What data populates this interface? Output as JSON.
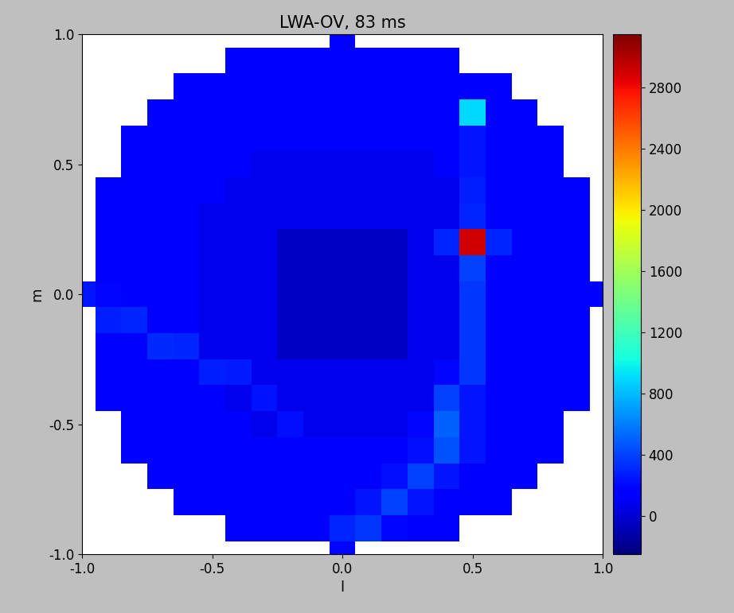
{
  "chart_data": {
    "type": "heatmap",
    "title": "LWA-OV, 83 ms",
    "x_label": "l",
    "y_label": "m",
    "xlim": [
      -1.0,
      1.0
    ],
    "ylim": [
      -1.0,
      1.0
    ],
    "xticks": [
      -1.0,
      -0.5,
      0.0,
      0.5,
      1.0
    ],
    "yticks": [
      -1.0,
      -0.5,
      0.0,
      0.5,
      1.0
    ],
    "color": "jet",
    "color_range": [
      -250,
      3150
    ],
    "color_ticks": [
      0,
      400,
      800,
      1200,
      1600,
      2000,
      2400,
      2800
    ],
    "l": [
      -1.0,
      -0.9,
      -0.8,
      -0.7,
      -0.6,
      -0.5,
      -0.4,
      -0.3,
      -0.2,
      -0.1,
      0.0,
      0.1,
      0.2,
      0.3,
      0.4,
      0.5,
      0.6,
      0.7,
      0.8,
      0.9,
      1.0
    ],
    "m": [
      -1.0,
      -0.9,
      -0.8,
      -0.7,
      -0.6,
      -0.5,
      -0.4,
      -0.3,
      -0.2,
      -0.1,
      0.0,
      0.1,
      0.2,
      0.3,
      0.4,
      0.5,
      0.6,
      0.7,
      0.8,
      0.9,
      1.0
    ],
    "cells": [
      [
        null,
        null,
        null,
        null,
        null,
        null,
        null,
        null,
        null,
        null,
        200,
        null,
        null,
        null,
        null,
        null,
        null,
        null,
        null,
        null,
        null
      ],
      [
        null,
        null,
        null,
        null,
        null,
        null,
        160,
        160,
        160,
        160,
        300,
        350,
        200,
        160,
        160,
        null,
        null,
        null,
        null,
        null,
        null
      ],
      [
        null,
        null,
        null,
        null,
        160,
        160,
        160,
        160,
        160,
        160,
        160,
        250,
        400,
        250,
        160,
        160,
        160,
        null,
        null,
        null,
        null
      ],
      [
        null,
        null,
        null,
        160,
        160,
        160,
        160,
        160,
        160,
        160,
        160,
        160,
        220,
        400,
        250,
        160,
        160,
        160,
        null,
        null,
        null
      ],
      [
        null,
        null,
        160,
        160,
        160,
        160,
        160,
        160,
        160,
        160,
        160,
        160,
        160,
        220,
        450,
        250,
        160,
        160,
        160,
        null,
        null
      ],
      [
        null,
        null,
        160,
        160,
        160,
        160,
        160,
        80,
        220,
        80,
        80,
        80,
        80,
        200,
        500,
        250,
        160,
        160,
        160,
        null,
        null
      ],
      [
        null,
        160,
        160,
        160,
        160,
        160,
        80,
        240,
        80,
        80,
        80,
        80,
        80,
        80,
        400,
        250,
        160,
        160,
        160,
        160,
        null
      ],
      [
        null,
        160,
        160,
        160,
        160,
        280,
        260,
        80,
        80,
        80,
        80,
        80,
        80,
        80,
        200,
        350,
        160,
        160,
        160,
        160,
        null
      ],
      [
        null,
        160,
        160,
        320,
        300,
        80,
        80,
        80,
        -50,
        -50,
        -50,
        -50,
        -50,
        80,
        80,
        350,
        160,
        160,
        160,
        160,
        null
      ],
      [
        null,
        280,
        300,
        160,
        160,
        80,
        80,
        80,
        -50,
        -50,
        -50,
        -50,
        -50,
        80,
        80,
        350,
        160,
        160,
        160,
        160,
        null
      ],
      [
        250,
        200,
        160,
        160,
        160,
        80,
        80,
        80,
        -50,
        -50,
        -50,
        -50,
        -50,
        80,
        80,
        350,
        160,
        160,
        160,
        160,
        160
      ],
      [
        null,
        160,
        160,
        160,
        160,
        80,
        80,
        80,
        -50,
        -50,
        -50,
        -50,
        -50,
        80,
        80,
        400,
        160,
        160,
        160,
        160,
        null
      ],
      [
        null,
        160,
        160,
        160,
        160,
        80,
        80,
        80,
        -50,
        -50,
        -50,
        -50,
        -50,
        80,
        300,
        2900,
        300,
        160,
        160,
        160,
        null
      ],
      [
        null,
        160,
        160,
        160,
        160,
        80,
        80,
        80,
        80,
        80,
        80,
        80,
        80,
        80,
        80,
        300,
        160,
        160,
        160,
        160,
        null
      ],
      [
        null,
        160,
        160,
        160,
        160,
        160,
        80,
        80,
        80,
        80,
        80,
        80,
        80,
        80,
        80,
        280,
        160,
        160,
        160,
        160,
        null
      ],
      [
        null,
        null,
        160,
        160,
        160,
        160,
        160,
        80,
        80,
        80,
        80,
        80,
        80,
        80,
        160,
        250,
        160,
        160,
        160,
        null,
        null
      ],
      [
        null,
        null,
        160,
        160,
        160,
        160,
        160,
        160,
        160,
        160,
        160,
        160,
        160,
        160,
        160,
        250,
        160,
        160,
        160,
        null,
        null
      ],
      [
        null,
        null,
        null,
        160,
        160,
        160,
        160,
        160,
        160,
        160,
        160,
        160,
        160,
        160,
        160,
        900,
        160,
        160,
        null,
        null,
        null
      ],
      [
        null,
        null,
        null,
        null,
        160,
        160,
        160,
        160,
        160,
        160,
        160,
        160,
        160,
        160,
        160,
        160,
        160,
        null,
        null,
        null,
        null
      ],
      [
        null,
        null,
        null,
        null,
        null,
        null,
        160,
        160,
        160,
        160,
        160,
        160,
        160,
        160,
        160,
        null,
        null,
        null,
        null,
        null,
        null
      ],
      [
        null,
        null,
        null,
        null,
        null,
        null,
        null,
        null,
        null,
        null,
        160,
        null,
        null,
        null,
        null,
        null,
        null,
        null,
        null,
        null,
        null
      ]
    ]
  }
}
